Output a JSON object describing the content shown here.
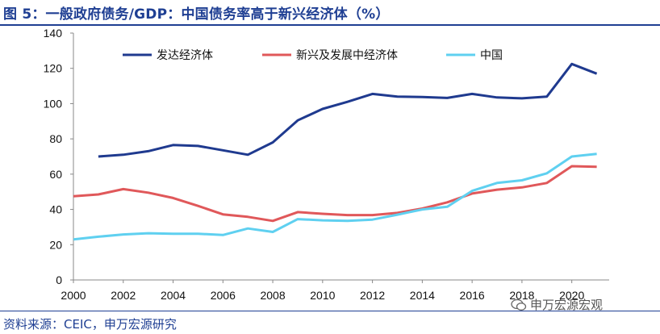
{
  "title": "图 5：一般政府债务/GDP：中国债务率高于新兴经济体（%）",
  "source": "资料来源：CEIC，申万宏源研究",
  "watermark": "申万宏源宏观",
  "chart_data": {
    "type": "line",
    "x": [
      2000,
      2001,
      2002,
      2003,
      2004,
      2005,
      2006,
      2007,
      2008,
      2009,
      2010,
      2011,
      2012,
      2013,
      2014,
      2015,
      2016,
      2017,
      2018,
      2019,
      2020,
      2021
    ],
    "xticks": [
      "2000",
      "2002",
      "2004",
      "2006",
      "2008",
      "2010",
      "2012",
      "2014",
      "2016",
      "2018",
      "2020"
    ],
    "yticks": [
      "0",
      "20",
      "40",
      "60",
      "80",
      "100",
      "120",
      "140"
    ],
    "ylim": [
      0,
      140
    ],
    "xlim": [
      2000,
      2021.5
    ],
    "grid": false,
    "legend_position": "top",
    "series": [
      {
        "name": "发达经济体",
        "color": "#1f3a8f",
        "values": [
          null,
          70,
          71,
          73,
          76.5,
          76,
          73.5,
          71,
          78,
          90.5,
          97,
          101,
          105.5,
          104,
          103.7,
          103.2,
          105.5,
          103.5,
          103,
          104,
          122.5,
          117
        ]
      },
      {
        "name": "新兴及发展中经济体",
        "color": "#e0585a",
        "values": [
          47.5,
          48.5,
          51.5,
          49.5,
          46.5,
          42,
          37.2,
          35.8,
          33.5,
          38.5,
          37.5,
          36.8,
          36.8,
          38,
          40.5,
          44,
          49,
          51.2,
          52.5,
          55,
          64.5,
          64.2
        ]
      },
      {
        "name": "中国",
        "color": "#5fd0f0",
        "values": [
          23,
          24.5,
          25.8,
          26.5,
          26.2,
          26.2,
          25.5,
          29.2,
          27.2,
          34.5,
          33.8,
          33.5,
          34.2,
          37,
          40,
          41.5,
          50.5,
          55,
          56.5,
          60.5,
          70,
          71.5
        ]
      }
    ]
  }
}
